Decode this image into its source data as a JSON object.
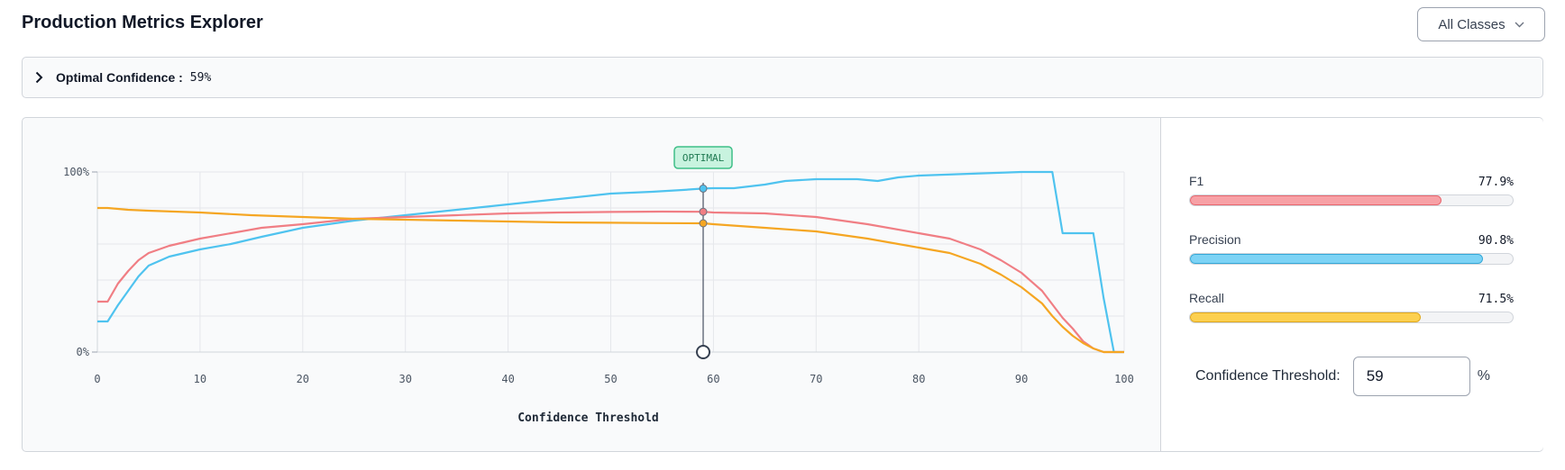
{
  "header": {
    "title": "Production Metrics Explorer",
    "class_select": {
      "value": "All Classes"
    }
  },
  "summary": {
    "label": "Optimal Confidence :",
    "value": "59%"
  },
  "metrics": [
    {
      "name": "F1",
      "value_label": "77.9%",
      "value": 77.9,
      "color": "#f7a1a6",
      "border": "#e8666e"
    },
    {
      "name": "Precision",
      "value_label": "90.8%",
      "value": 90.8,
      "color": "#7dd3f5",
      "border": "#34a8d8"
    },
    {
      "name": "Recall",
      "value_label": "71.5%",
      "value": 71.5,
      "color": "#fcd04f",
      "border": "#e0a81d"
    }
  ],
  "threshold": {
    "label": "Confidence Threshold:",
    "value": "59",
    "unit": "%"
  },
  "chart_data": {
    "type": "line",
    "xlabel": "Confidence Threshold",
    "ylabel": "",
    "xlim": [
      0,
      100
    ],
    "ylim": [
      0,
      100
    ],
    "x_ticks": [
      "0",
      "10",
      "20",
      "30",
      "40",
      "50",
      "60",
      "70",
      "80",
      "90",
      "100"
    ],
    "y_ticks": [
      "0%",
      "100%"
    ],
    "grid": true,
    "marker": {
      "x": 59,
      "label": "OPTIMAL"
    },
    "series": [
      {
        "key": "precision",
        "color": "#4fc3ef",
        "points": [
          [
            0,
            17
          ],
          [
            1,
            17
          ],
          [
            2,
            26
          ],
          [
            3,
            34
          ],
          [
            4,
            42
          ],
          [
            5,
            48
          ],
          [
            7,
            53
          ],
          [
            10,
            57
          ],
          [
            13,
            60
          ],
          [
            16,
            64
          ],
          [
            20,
            69
          ],
          [
            25,
            73
          ],
          [
            30,
            76
          ],
          [
            35,
            79
          ],
          [
            40,
            82
          ],
          [
            45,
            85
          ],
          [
            50,
            88
          ],
          [
            54,
            89
          ],
          [
            57,
            90
          ],
          [
            59,
            90.8
          ],
          [
            60,
            91
          ],
          [
            62,
            91
          ],
          [
            65,
            93
          ],
          [
            67,
            95
          ],
          [
            70,
            96
          ],
          [
            74,
            96
          ],
          [
            76,
            95
          ],
          [
            78,
            97
          ],
          [
            80,
            98
          ],
          [
            85,
            99
          ],
          [
            90,
            100
          ],
          [
            92,
            100
          ],
          [
            93,
            100
          ],
          [
            94,
            66
          ],
          [
            97,
            66
          ],
          [
            98,
            30
          ],
          [
            99,
            0
          ],
          [
            100,
            0
          ]
        ]
      },
      {
        "key": "f1",
        "color": "#f07e84",
        "points": [
          [
            0,
            28
          ],
          [
            1,
            28
          ],
          [
            2,
            38
          ],
          [
            3,
            45
          ],
          [
            4,
            51
          ],
          [
            5,
            55
          ],
          [
            7,
            59
          ],
          [
            10,
            63
          ],
          [
            13,
            66
          ],
          [
            16,
            69
          ],
          [
            20,
            71
          ],
          [
            25,
            74
          ],
          [
            30,
            75
          ],
          [
            35,
            76
          ],
          [
            40,
            77
          ],
          [
            45,
            77.5
          ],
          [
            50,
            77.8
          ],
          [
            55,
            78
          ],
          [
            59,
            77.9
          ],
          [
            60,
            77.5
          ],
          [
            65,
            77
          ],
          [
            70,
            75
          ],
          [
            75,
            71
          ],
          [
            80,
            66
          ],
          [
            83,
            63
          ],
          [
            86,
            57
          ],
          [
            88,
            51
          ],
          [
            90,
            44
          ],
          [
            92,
            34
          ],
          [
            94,
            19
          ],
          [
            95,
            13
          ],
          [
            96,
            6
          ],
          [
            97,
            2
          ],
          [
            98,
            0
          ],
          [
            100,
            0
          ]
        ]
      },
      {
        "key": "recall",
        "color": "#f5a623",
        "points": [
          [
            0,
            80
          ],
          [
            1,
            80
          ],
          [
            2,
            79.5
          ],
          [
            3,
            79
          ],
          [
            5,
            78.5
          ],
          [
            10,
            77.5
          ],
          [
            15,
            76
          ],
          [
            20,
            75
          ],
          [
            25,
            74
          ],
          [
            30,
            73.5
          ],
          [
            35,
            73
          ],
          [
            40,
            72.5
          ],
          [
            45,
            72
          ],
          [
            50,
            71.8
          ],
          [
            55,
            71.6
          ],
          [
            59,
            71.5
          ],
          [
            60,
            71
          ],
          [
            65,
            69
          ],
          [
            70,
            67
          ],
          [
            75,
            63
          ],
          [
            80,
            58
          ],
          [
            83,
            55
          ],
          [
            86,
            49
          ],
          [
            88,
            43
          ],
          [
            90,
            36
          ],
          [
            92,
            27
          ],
          [
            93,
            20
          ],
          [
            94,
            14
          ],
          [
            95,
            9
          ],
          [
            96,
            5
          ],
          [
            97,
            2
          ],
          [
            98,
            0
          ],
          [
            100,
            0
          ]
        ]
      }
    ]
  }
}
